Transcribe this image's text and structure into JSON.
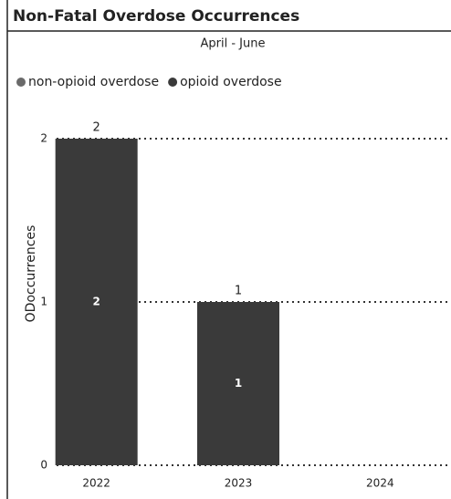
{
  "chart_data": {
    "type": "stacked_bar",
    "title": "Non-Fatal Overdose Occurrences",
    "subtitle": "April - June",
    "y_label": "ODoccurrences",
    "categories": [
      "2022",
      "2023",
      "2024"
    ],
    "series": [
      {
        "name": "non-opioid overdose",
        "color": "#6a6a6a",
        "values": [
          0,
          0,
          null
        ]
      },
      {
        "name": "opioid overdose",
        "color": "#3a3a3a",
        "values": [
          2,
          1,
          null
        ]
      }
    ],
    "totals": [
      2,
      1,
      null
    ],
    "ylim": [
      0,
      2
    ],
    "yticks": [
      0,
      1,
      2
    ],
    "grid": true,
    "legend": "top-left"
  }
}
